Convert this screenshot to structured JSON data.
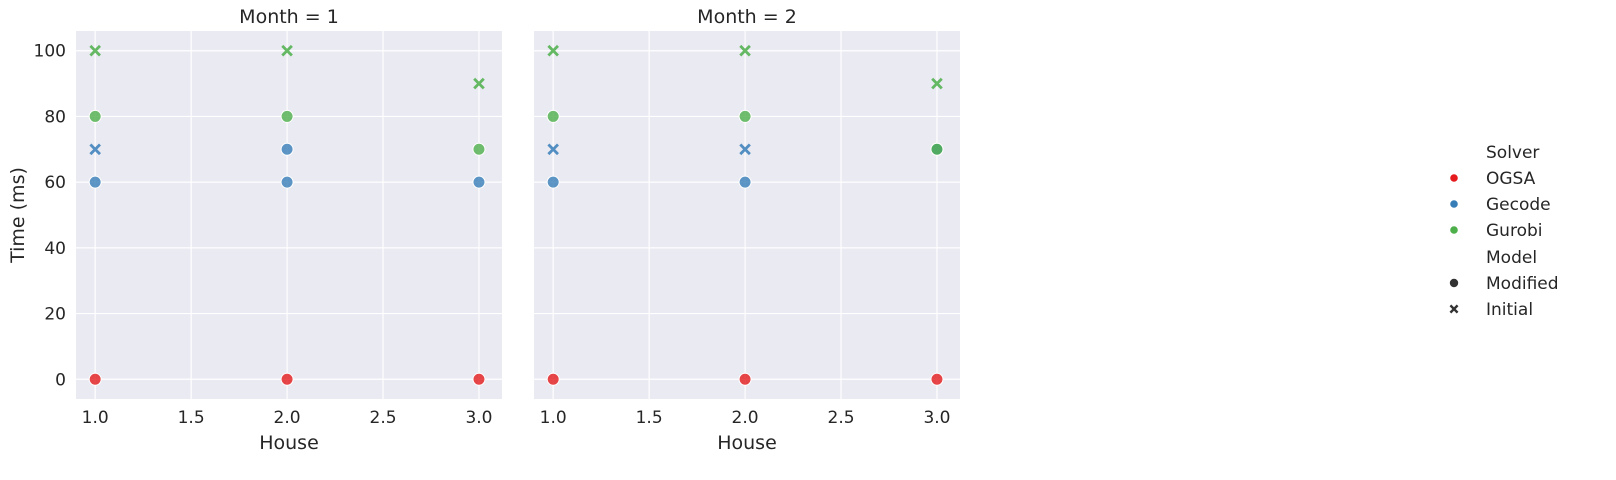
{
  "chart_data": {
    "type": "scatter",
    "ylabel": "Time (ms)",
    "xlim": [
      0.9,
      3.12
    ],
    "ylim": [
      -6,
      106
    ],
    "x_ticks": [
      "1.0",
      "1.5",
      "2.0",
      "2.5",
      "3.0"
    ],
    "x_tick_values": [
      1.0,
      1.5,
      2.0,
      2.5,
      3.0
    ],
    "y_ticks": [
      "0",
      "20",
      "40",
      "60",
      "80",
      "100"
    ],
    "y_tick_values": [
      0,
      20,
      40,
      60,
      80,
      100
    ],
    "grid": true,
    "panels": [
      {
        "title": "Month = 1",
        "xlabel": "House",
        "points": [
          {
            "solver": "OGSA",
            "model": "Modified",
            "x": 1,
            "y": 0
          },
          {
            "solver": "OGSA",
            "model": "Modified",
            "x": 2,
            "y": 0
          },
          {
            "solver": "OGSA",
            "model": "Modified",
            "x": 3,
            "y": 0
          },
          {
            "solver": "Gecode",
            "model": "Modified",
            "x": 1,
            "y": 60
          },
          {
            "solver": "Gecode",
            "model": "Modified",
            "x": 2,
            "y": 70
          },
          {
            "solver": "Gecode",
            "model": "Modified",
            "x": 2,
            "y": 60
          },
          {
            "solver": "Gecode",
            "model": "Modified",
            "x": 3,
            "y": 60
          },
          {
            "solver": "Gecode",
            "model": "Initial",
            "x": 1,
            "y": 70
          },
          {
            "solver": "Gurobi",
            "model": "Modified",
            "x": 1,
            "y": 80
          },
          {
            "solver": "Gurobi",
            "model": "Modified",
            "x": 2,
            "y": 80
          },
          {
            "solver": "Gurobi",
            "model": "Modified",
            "x": 3,
            "y": 70
          },
          {
            "solver": "Gurobi",
            "model": "Initial",
            "x": 1,
            "y": 100
          },
          {
            "solver": "Gurobi",
            "model": "Initial",
            "x": 2,
            "y": 100
          },
          {
            "solver": "Gurobi",
            "model": "Initial",
            "x": 3,
            "y": 90
          }
        ]
      },
      {
        "title": "Month = 2",
        "xlabel": "House",
        "points": [
          {
            "solver": "OGSA",
            "model": "Modified",
            "x": 1,
            "y": 0
          },
          {
            "solver": "OGSA",
            "model": "Modified",
            "x": 2,
            "y": 0
          },
          {
            "solver": "OGSA",
            "model": "Modified",
            "x": 3,
            "y": 0
          },
          {
            "solver": "Gecode",
            "model": "Modified",
            "x": 1,
            "y": 60
          },
          {
            "solver": "Gecode",
            "model": "Modified",
            "x": 2,
            "y": 60
          },
          {
            "solver": "Gecode",
            "model": "Modified",
            "x": 3,
            "y": 70
          },
          {
            "solver": "Gecode",
            "model": "Initial",
            "x": 1,
            "y": 70
          },
          {
            "solver": "Gecode",
            "model": "Initial",
            "x": 2,
            "y": 70
          },
          {
            "solver": "Gurobi",
            "model": "Modified",
            "x": 1,
            "y": 80
          },
          {
            "solver": "Gurobi",
            "model": "Modified",
            "x": 2,
            "y": 80
          },
          {
            "solver": "Gurobi",
            "model": "Modified",
            "x": 3,
            "y": 70
          },
          {
            "solver": "Gurobi",
            "model": "Initial",
            "x": 1,
            "y": 100
          },
          {
            "solver": "Gurobi",
            "model": "Initial",
            "x": 2,
            "y": 100
          },
          {
            "solver": "Gurobi",
            "model": "Initial",
            "x": 3,
            "y": 90
          }
        ]
      }
    ],
    "legend": {
      "placement": "right",
      "hue_title": "Solver",
      "hue_entries": [
        {
          "label": "OGSA",
          "color": "#e41a1c"
        },
        {
          "label": "Gecode",
          "color": "#377eb8"
        },
        {
          "label": "Gurobi",
          "color": "#4daf4a"
        }
      ],
      "style_title": "Model",
      "style_entries": [
        {
          "label": "Modified",
          "marker": "circle"
        },
        {
          "label": "Initial",
          "marker": "x"
        }
      ]
    },
    "colors": {
      "panel_background": "#eaeaf2",
      "grid": "#ffffff",
      "text": "#262626",
      "legend_marker": "#333333"
    }
  }
}
